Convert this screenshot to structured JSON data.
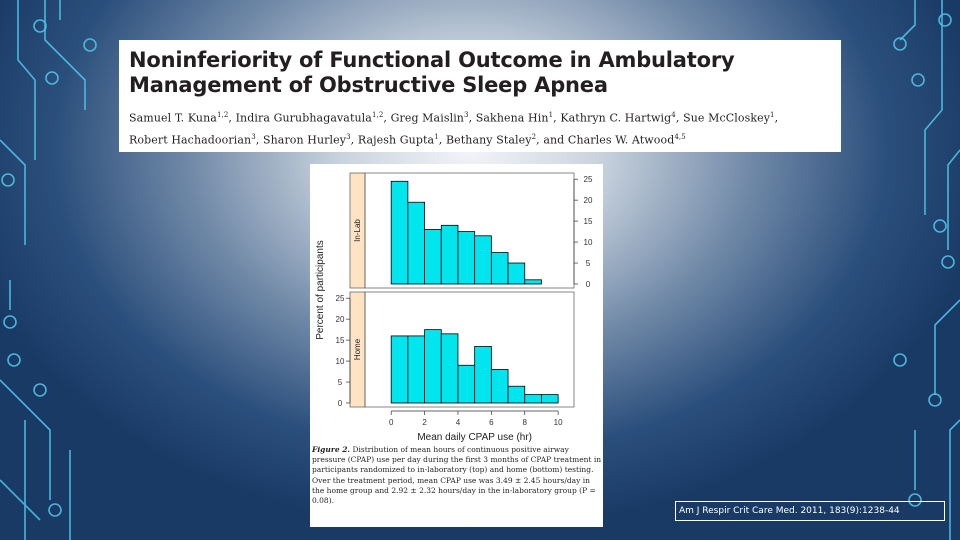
{
  "slide": {
    "title_lines": [
      "Noninferiority of Functional Outcome in Ambulatory",
      "Management of Obstructive Sleep Apnea"
    ],
    "authors_line1": [
      {
        "name": "Samuel T. Kuna",
        "sup": "1,2"
      },
      {
        "name": "Indira Gurubhagavatula",
        "sup": "1,2"
      },
      {
        "name": "Greg Maislin",
        "sup": "3"
      },
      {
        "name": "Sakhena Hin",
        "sup": "1"
      },
      {
        "name": "Kathryn C. Hartwig",
        "sup": "4"
      },
      {
        "name": "Sue McCloskey",
        "sup": "1"
      }
    ],
    "authors_line2": [
      {
        "name": "Robert Hachadoorian",
        "sup": "3"
      },
      {
        "name": "Sharon Hurley",
        "sup": "3"
      },
      {
        "name": "Rajesh Gupta",
        "sup": "1"
      },
      {
        "name": "Bethany Staley",
        "sup": "2"
      },
      {
        "name": "and Charles W. Atwood",
        "sup": "4,5"
      }
    ],
    "caption_label": "Figure 2.",
    "caption_lines": [
      "Distribution of mean hours of continuous positive airway",
      "pressure (CPAP) use per day during the first 3 months of CPAP",
      "treatment in participants randomized to in-laboratory (top) and home",
      "(bottom) testing. Over the treatment period, mean CPAP use was",
      "3.49 ± 2.45 hours/day in the home group and 2.92 ± 2.32 hours/day",
      "in the in-laboratory group (P = 0.08)."
    ],
    "citation": "Am J Respir Crit Care Med. 2011, 183(9):1238-44"
  },
  "chart_data": [
    {
      "type": "bar",
      "panel": "In-Lab",
      "ylabel": "Percent of participants",
      "bin_edges": [
        0,
        1,
        2,
        3,
        4,
        5,
        6,
        7,
        8,
        9
      ],
      "values": [
        24.5,
        19.5,
        13,
        14,
        12.5,
        11.5,
        7.5,
        5,
        1
      ],
      "ylim": [
        0,
        26
      ],
      "yticks": [
        0,
        5,
        10,
        15,
        20,
        25
      ],
      "bar_color": "#00e5ee"
    },
    {
      "type": "bar",
      "panel": "Home",
      "xlabel": "Mean daily CPAP use (hr)",
      "ylabel": "Percent of participants",
      "bin_edges": [
        0,
        1,
        2,
        3,
        4,
        5,
        6,
        7,
        8,
        9,
        10
      ],
      "values": [
        16,
        16,
        17.5,
        16.5,
        9,
        13.5,
        8,
        4,
        2,
        2
      ],
      "ylim": [
        0,
        26
      ],
      "yticks": [
        0,
        5,
        10,
        15,
        20,
        25
      ],
      "xticks": [
        0,
        2,
        4,
        6,
        8,
        10
      ],
      "bar_color": "#00e5ee"
    }
  ]
}
